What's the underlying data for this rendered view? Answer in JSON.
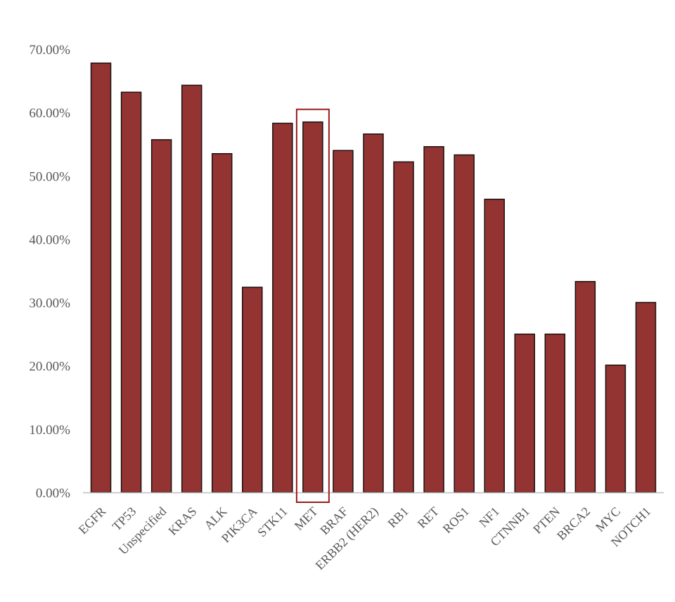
{
  "chart_data": {
    "type": "bar",
    "title": "",
    "xlabel": "",
    "ylabel": "",
    "categories": [
      "EGFR",
      "TP53",
      "Unspecified",
      "KRAS",
      "ALK",
      "PIK3CA",
      "STK11",
      "MET",
      "BRAF",
      "ERBB2 (HER2)",
      "RB1",
      "RET",
      "ROS1",
      "NF1",
      "CTNNB1",
      "PTEN",
      "BRCA2",
      "MYC",
      "NOTCH1"
    ],
    "values": [
      67.8,
      63.2,
      55.7,
      64.3,
      53.5,
      32.4,
      58.3,
      58.5,
      54.0,
      56.6,
      52.2,
      54.6,
      53.3,
      46.3,
      25.0,
      25.0,
      33.3,
      20.1,
      30.0
    ],
    "ylim": [
      0,
      70
    ],
    "yticks": [
      0,
      10,
      20,
      30,
      40,
      50,
      60,
      70
    ],
    "ytick_labels": [
      "0.00%",
      "10.00%",
      "20.00%",
      "30.00%",
      "40.00%",
      "50.00%",
      "60.00%",
      "70.00%"
    ],
    "grid": false,
    "legend": "none",
    "highlighted_category": "MET",
    "colors": {
      "bar_fill": "#933432",
      "bar_stroke": "#1a1010",
      "highlight_box": "#9b1c1c",
      "axis": "#bfbfbf",
      "text": "#595959"
    }
  }
}
